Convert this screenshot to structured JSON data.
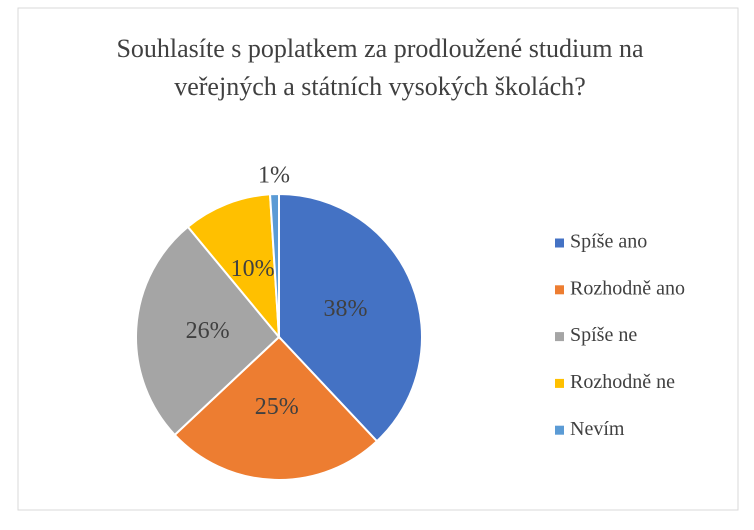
{
  "chart_data": {
    "type": "pie",
    "title": "Souhlasíte s poplatkem za prodloužené studium na veřejných a státních vysokých školách?",
    "categories": [
      "Spíše ano",
      "Rozhodně ano",
      "Spíše ne",
      "Rozhodně ne",
      "Nevím"
    ],
    "values": [
      38,
      25,
      26,
      10,
      1
    ],
    "value_labels": [
      "38%",
      "25%",
      "26%",
      "10%",
      "1%"
    ],
    "colors": [
      "#4472c4",
      "#ed7d31",
      "#a5a5a5",
      "#ffc000",
      "#5b9bd5"
    ],
    "legend": "right"
  }
}
